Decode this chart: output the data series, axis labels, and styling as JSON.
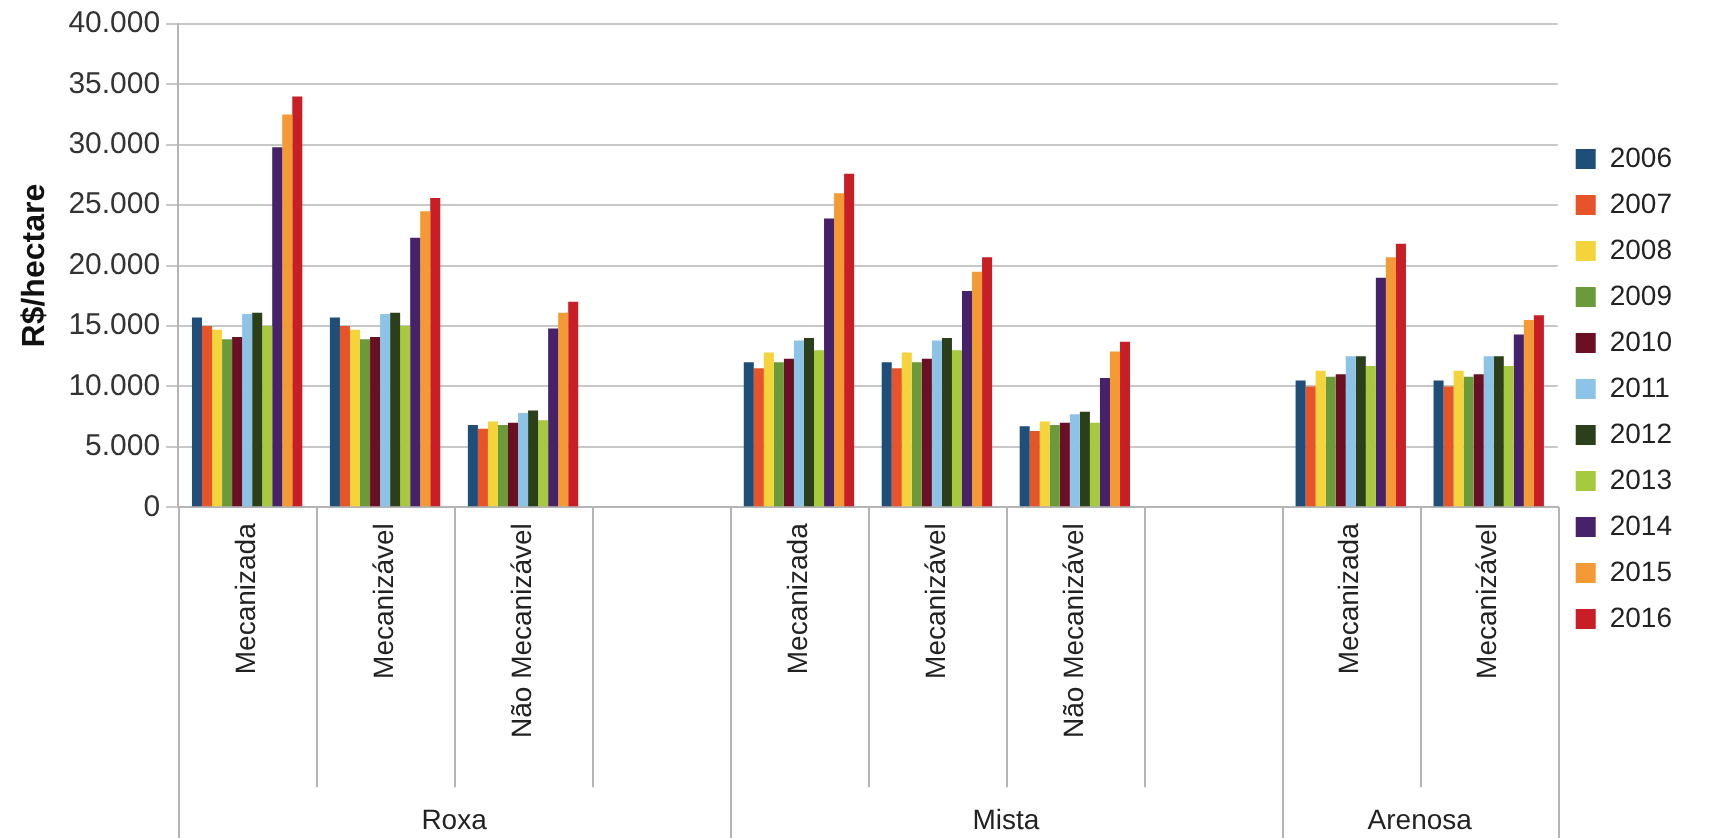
{
  "chart_data": {
    "type": "bar",
    "ylabel": "R$/hectare",
    "categories": [
      "Mecanizada",
      "Mecanizável",
      "Não Mecanizável",
      null,
      "Mecanizada",
      "Mecanizável",
      "Não Mecanizável",
      null,
      "Mecanizada",
      "Mecanizável"
    ],
    "annotations": [
      "Roxa",
      "Mista",
      "Arenosa"
    ],
    "ylim": [
      0,
      40000
    ],
    "yticks": [
      {
        "value": 0,
        "label": "0"
      },
      {
        "value": 5000,
        "label": "5.000"
      },
      {
        "value": 10000,
        "label": "10.000"
      },
      {
        "value": 15000,
        "label": "15.000"
      },
      {
        "value": 20000,
        "label": "20.000"
      },
      {
        "value": 25000,
        "label": "25.000"
      },
      {
        "value": 30000,
        "label": "30.000"
      },
      {
        "value": 35000,
        "label": "35.000"
      },
      {
        "value": 40000,
        "label": "40.000"
      }
    ],
    "grid": "y",
    "legend": "right",
    "series": [
      {
        "name": "2006",
        "color": "#1f4e79",
        "values": [
          15700,
          15700,
          6800,
          null,
          12000,
          12000,
          6700,
          null,
          10500,
          10500
        ]
      },
      {
        "name": "2007",
        "color": "#e8542a",
        "values": [
          15000,
          15000,
          6500,
          null,
          11500,
          11500,
          6300,
          null,
          10000,
          10000
        ]
      },
      {
        "name": "2008",
        "color": "#f5d33a",
        "values": [
          14700,
          14700,
          7100,
          null,
          12800,
          12800,
          7100,
          null,
          11300,
          11300
        ]
      },
      {
        "name": "2009",
        "color": "#6a9a3a",
        "values": [
          13900,
          13900,
          6800,
          null,
          12000,
          12000,
          6800,
          null,
          10800,
          10800
        ]
      },
      {
        "name": "2010",
        "color": "#6b0f24",
        "values": [
          14100,
          14100,
          7000,
          null,
          12300,
          12300,
          7000,
          null,
          11000,
          11000
        ]
      },
      {
        "name": "2011",
        "color": "#8ec3e8",
        "values": [
          16000,
          16000,
          7800,
          null,
          13800,
          13800,
          7700,
          null,
          12500,
          12500
        ]
      },
      {
        "name": "2012",
        "color": "#2c3f1b",
        "values": [
          16100,
          16100,
          8000,
          null,
          14000,
          14000,
          7900,
          null,
          12500,
          12500
        ]
      },
      {
        "name": "2013",
        "color": "#a6c93e",
        "values": [
          15000,
          15000,
          7200,
          null,
          13000,
          13000,
          7000,
          null,
          11700,
          11700
        ]
      },
      {
        "name": "2014",
        "color": "#46226b",
        "values": [
          29800,
          22300,
          14800,
          null,
          23900,
          17900,
          10700,
          null,
          19000,
          14300
        ]
      },
      {
        "name": "2015",
        "color": "#f39a34",
        "values": [
          32500,
          24500,
          16100,
          null,
          26000,
          19500,
          12900,
          null,
          20700,
          15500
        ]
      },
      {
        "name": "2016",
        "color": "#c81e26",
        "values": [
          34000,
          25600,
          17000,
          null,
          27600,
          20700,
          13700,
          null,
          21800,
          15900
        ]
      }
    ]
  }
}
